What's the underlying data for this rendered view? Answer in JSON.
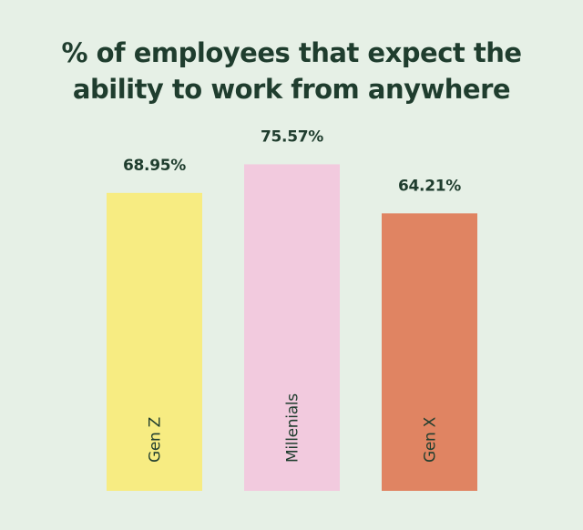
{
  "background": "#e6f0e6",
  "text_color": "#1f3d2e",
  "chart_data": {
    "type": "bar",
    "title": "% of employees that expect the\nability to work from anywhere",
    "categories": [
      "Gen Z",
      "Millenials",
      "Gen X"
    ],
    "values": [
      68.95,
      75.57,
      64.21
    ],
    "value_labels": [
      "68.95%",
      "75.57%",
      "64.21%"
    ],
    "colors": [
      "#f7ec82",
      "#f2cade",
      "#e08462"
    ],
    "ylim": [
      0,
      100
    ],
    "xlabel": "",
    "ylabel": "",
    "grid": false,
    "legend": "none",
    "category_label_orientation": "vertical, inside bar"
  }
}
